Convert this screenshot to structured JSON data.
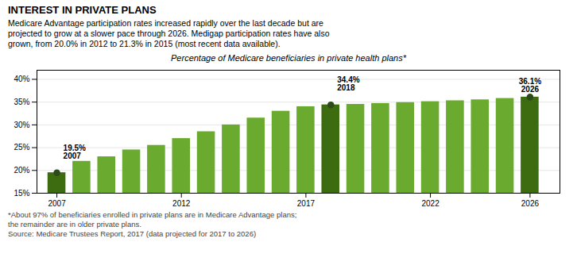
{
  "chart_data": {
    "type": "bar",
    "title": "INTEREST IN PRIVATE PLANS",
    "subtitle": "Medicare Advantage participation rates increased rapidly over the last decade but are\nprojected to grow at a slower pace through 2026. Medigap participation rates have also\ngrown, from 20.0% in 2012 to 21.3% in 2015 (most recent data available).",
    "chart_title": "Percentage of Medicare beneficiaries in private health plans*",
    "x": [
      2007,
      2008,
      2009,
      2010,
      2011,
      2012,
      2013,
      2014,
      2015,
      2016,
      2017,
      2018,
      2019,
      2020,
      2021,
      2022,
      2023,
      2024,
      2025,
      2026
    ],
    "values": [
      19.5,
      22.0,
      23.0,
      24.5,
      25.5,
      27.0,
      28.5,
      30.0,
      31.5,
      33.0,
      34.0,
      34.4,
      34.5,
      34.7,
      34.9,
      35.1,
      35.3,
      35.5,
      35.8,
      36.1
    ],
    "colors": [
      "#3d6b10",
      "#6aaa2e",
      "#6aaa2e",
      "#6aaa2e",
      "#6aaa2e",
      "#6aaa2e",
      "#6aaa2e",
      "#6aaa2e",
      "#6aaa2e",
      "#6aaa2e",
      "#6aaa2e",
      "#3d6b10",
      "#6aaa2e",
      "#6aaa2e",
      "#6aaa2e",
      "#6aaa2e",
      "#6aaa2e",
      "#6aaa2e",
      "#6aaa2e",
      "#3d6b10"
    ],
    "xlim": [
      2006.2,
      2027.2
    ],
    "xticks": [
      2007,
      2012,
      2017,
      2022,
      2026
    ],
    "ylim": [
      15,
      42
    ],
    "yticks": [
      {
        "value": 15,
        "label": "15%"
      },
      {
        "value": 20,
        "label": "20%"
      },
      {
        "value": 25,
        "label": "25%"
      },
      {
        "value": 30,
        "label": "30%"
      },
      {
        "value": 35,
        "label": "35%"
      },
      {
        "value": 40,
        "label": "40%"
      }
    ],
    "grid": true,
    "annotations": [
      {
        "text": "19.5%\n2007",
        "x": 2007,
        "y": 19.5,
        "color": "#2d4a1a"
      },
      {
        "text": "34.4%\n2018",
        "x": 2018,
        "y": 34.4,
        "color": "#2d4a1a"
      },
      {
        "text": "36.1%\n2026",
        "x": 2026,
        "y": 36.1,
        "color": "#2d4a1a"
      }
    ],
    "footnotes": [
      "*About 97% of beneficiaries enrolled in private plans are in Medicare Advantage plans;",
      " the remainder are in older private plans.",
      "Source: Medicare Trustees Report, 2017 (data projected for 2017 to 2026)"
    ]
  }
}
